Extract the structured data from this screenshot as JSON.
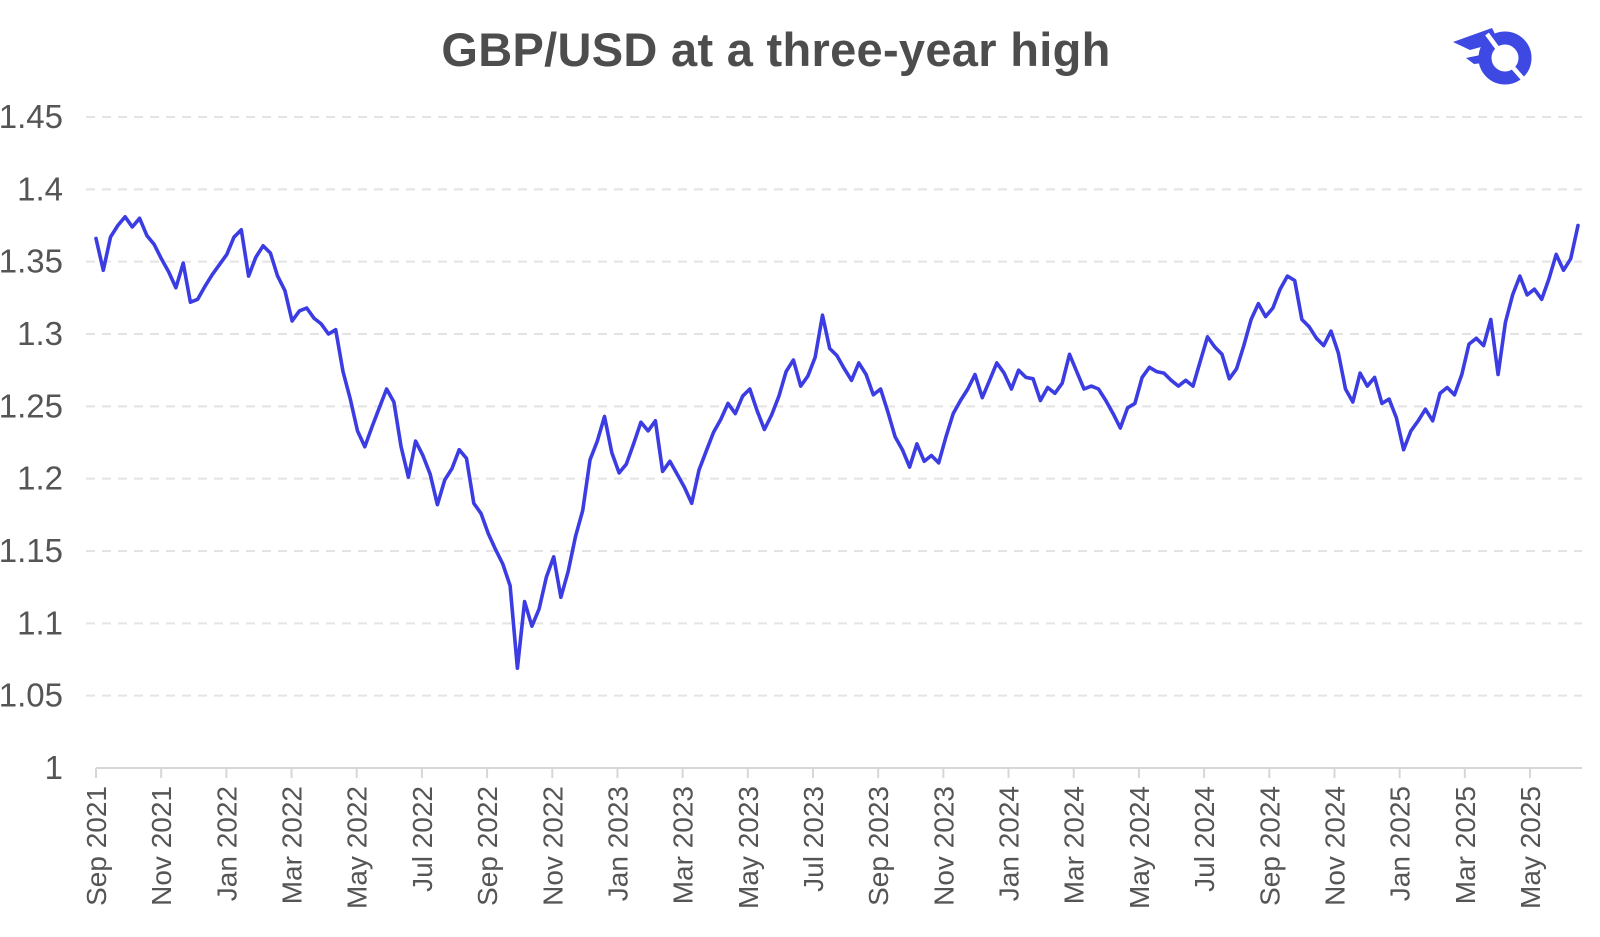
{
  "header": {
    "title": "GBP/USD at a three-year high",
    "brand_color": "#3d49e2"
  },
  "chart_data": {
    "type": "line",
    "title": "GBP/USD at a three-year high",
    "xlabel": "",
    "ylabel": "",
    "legend": "none",
    "grid": {
      "horizontal": true,
      "style": "dashed",
      "color": "#e4e4e4"
    },
    "axis_color": "#d7d7d7",
    "tick_label_color": "#555555",
    "ylim": [
      1.0,
      1.45
    ],
    "y_ticks": [
      {
        "label": "1.45",
        "value": 1.45
      },
      {
        "label": "1.4",
        "value": 1.4
      },
      {
        "label": "1.35",
        "value": 1.35
      },
      {
        "label": "1.3",
        "value": 1.3
      },
      {
        "label": "1.25",
        "value": 1.25
      },
      {
        "label": "1.2",
        "value": 1.2
      },
      {
        "label": "1.15",
        "value": 1.15
      },
      {
        "label": "1.1",
        "value": 1.1
      },
      {
        "label": "1.05",
        "value": 1.05
      },
      {
        "label": "1",
        "value": 1.0
      }
    ],
    "x_tick_labels": [
      "Sep 2021",
      "Nov 2021",
      "Jan 2022",
      "Mar 2022",
      "May 2022",
      "Jul 2022",
      "Sep 2022",
      "Nov 2022",
      "Jan 2023",
      "Mar 2023",
      "May 2023",
      "Jul 2023",
      "Sep 2023",
      "Nov 2023",
      "Jan 2024",
      "Mar 2024",
      "May 2024",
      "Jul 2024",
      "Sep 2024",
      "Nov 2024",
      "Jan 2025",
      "Mar 2025",
      "May 2025"
    ],
    "x_unit": "weekly samples from Sep 2021 to mid-Jun 2025",
    "series": [
      {
        "name": "GBP/USD",
        "color": "#3b3ce2",
        "values": [
          1.366,
          1.344,
          1.367,
          1.375,
          1.381,
          1.374,
          1.38,
          1.368,
          1.362,
          1.352,
          1.343,
          1.332,
          1.349,
          1.322,
          1.324,
          1.333,
          1.341,
          1.348,
          1.355,
          1.367,
          1.372,
          1.34,
          1.353,
          1.361,
          1.356,
          1.34,
          1.33,
          1.309,
          1.316,
          1.318,
          1.311,
          1.307,
          1.3,
          1.303,
          1.274,
          1.255,
          1.233,
          1.222,
          1.236,
          1.249,
          1.262,
          1.253,
          1.222,
          1.201,
          1.226,
          1.216,
          1.203,
          1.182,
          1.199,
          1.207,
          1.22,
          1.214,
          1.183,
          1.176,
          1.162,
          1.151,
          1.141,
          1.126,
          1.069,
          1.115,
          1.098,
          1.11,
          1.132,
          1.146,
          1.118,
          1.136,
          1.16,
          1.178,
          1.213,
          1.226,
          1.243,
          1.218,
          1.204,
          1.21,
          1.224,
          1.239,
          1.233,
          1.24,
          1.205,
          1.212,
          1.203,
          1.194,
          1.183,
          1.206,
          1.219,
          1.232,
          1.241,
          1.252,
          1.245,
          1.257,
          1.262,
          1.247,
          1.234,
          1.244,
          1.257,
          1.274,
          1.282,
          1.264,
          1.271,
          1.284,
          1.313,
          1.29,
          1.285,
          1.276,
          1.268,
          1.28,
          1.272,
          1.258,
          1.262,
          1.246,
          1.229,
          1.22,
          1.208,
          1.224,
          1.212,
          1.216,
          1.211,
          1.229,
          1.245,
          1.254,
          1.262,
          1.272,
          1.256,
          1.268,
          1.28,
          1.273,
          1.262,
          1.275,
          1.27,
          1.269,
          1.254,
          1.263,
          1.259,
          1.266,
          1.286,
          1.274,
          1.262,
          1.264,
          1.262,
          1.254,
          1.245,
          1.235,
          1.249,
          1.252,
          1.27,
          1.277,
          1.274,
          1.273,
          1.268,
          1.264,
          1.268,
          1.264,
          1.281,
          1.298,
          1.291,
          1.286,
          1.269,
          1.276,
          1.292,
          1.31,
          1.321,
          1.312,
          1.318,
          1.331,
          1.34,
          1.337,
          1.31,
          1.305,
          1.297,
          1.292,
          1.302,
          1.287,
          1.262,
          1.253,
          1.273,
          1.264,
          1.27,
          1.252,
          1.255,
          1.242,
          1.22,
          1.233,
          1.24,
          1.248,
          1.24,
          1.259,
          1.263,
          1.258,
          1.272,
          1.293,
          1.297,
          1.292,
          1.31,
          1.272,
          1.308,
          1.327,
          1.34,
          1.327,
          1.331,
          1.324,
          1.338,
          1.355,
          1.344,
          1.352,
          1.375
        ]
      }
    ]
  }
}
